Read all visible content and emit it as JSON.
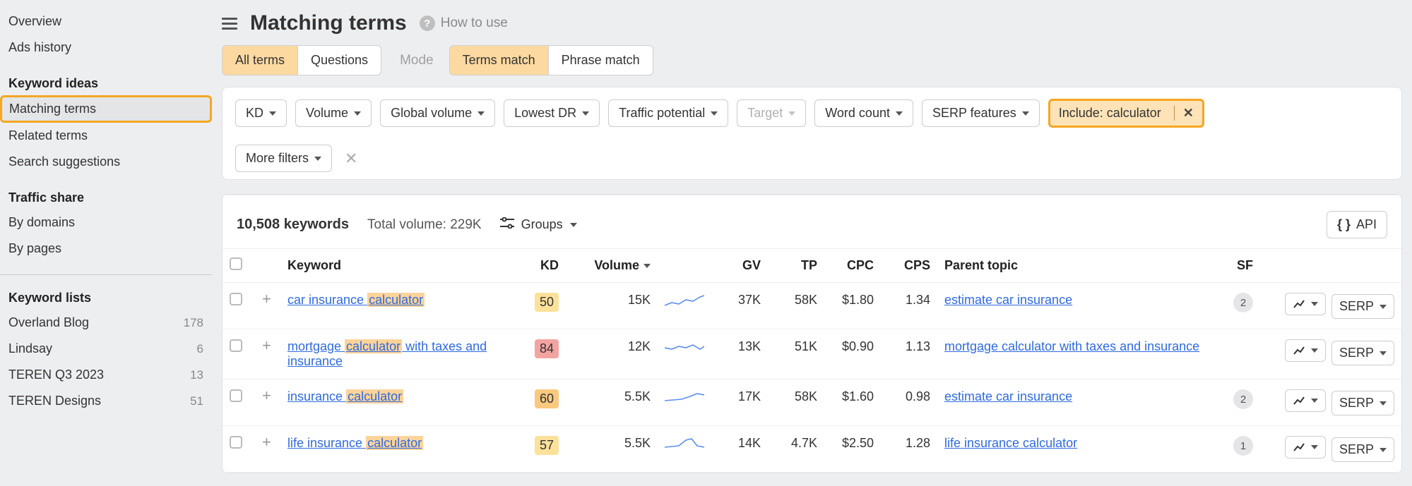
{
  "page": {
    "title": "Matching terms",
    "how_to_use": "How to use"
  },
  "sidebar": {
    "top": [
      {
        "label": "Overview"
      },
      {
        "label": "Ads history"
      }
    ],
    "groups": [
      {
        "heading": "Keyword ideas",
        "items": [
          {
            "label": "Matching terms",
            "active": true
          },
          {
            "label": "Related terms"
          },
          {
            "label": "Search suggestions"
          }
        ]
      },
      {
        "heading": "Traffic share",
        "items": [
          {
            "label": "By domains"
          },
          {
            "label": "By pages"
          }
        ]
      },
      {
        "heading": "Keyword lists",
        "divider_before": true,
        "items": [
          {
            "label": "Overland Blog",
            "count": "178"
          },
          {
            "label": "Lindsay",
            "count": "6"
          },
          {
            "label": "TEREN Q3 2023",
            "count": "13"
          },
          {
            "label": "TEREN Designs",
            "count": "51"
          }
        ]
      }
    ]
  },
  "toggles": {
    "segment1": [
      {
        "label": "All terms",
        "selected": true
      },
      {
        "label": "Questions",
        "selected": false
      }
    ],
    "mode_label": "Mode",
    "segment2": [
      {
        "label": "Terms match",
        "selected": true
      },
      {
        "label": "Phrase match",
        "selected": false
      }
    ]
  },
  "filters": {
    "row1": [
      {
        "label": "KD"
      },
      {
        "label": "Volume"
      },
      {
        "label": "Global volume"
      },
      {
        "label": "Lowest DR"
      },
      {
        "label": "Traffic potential"
      },
      {
        "label": "Target",
        "disabled": true
      },
      {
        "label": "Word count"
      },
      {
        "label": "SERP features"
      },
      {
        "label": "Include: calculator",
        "highlight": true,
        "closable": true
      }
    ],
    "row2": [
      {
        "label": "More filters"
      }
    ]
  },
  "summary": {
    "keywords_count": "10,508 keywords",
    "total_volume": "Total volume: 229K",
    "groups_label": "Groups",
    "api_label": "API"
  },
  "columns": {
    "keyword": "Keyword",
    "kd": "KD",
    "volume": "Volume",
    "gv": "GV",
    "tp": "TP",
    "cpc": "CPC",
    "cps": "CPS",
    "parent": "Parent topic",
    "sf": "SF",
    "serp_btn": "SERP"
  },
  "kd_colors": {
    "50": "#fbe19a",
    "84": "#f2a4a0",
    "60": "#f9c97e",
    "57": "#fbe19a"
  },
  "rows": [
    {
      "keyword_pre": "car insurance ",
      "keyword_hi": "calculator",
      "keyword_post": "",
      "kd": "50",
      "volume": "15K",
      "gv": "37K",
      "tp": "58K",
      "cpc": "$1.80",
      "cps": "1.34",
      "parent": "estimate car insurance",
      "sf": "2",
      "spark": "0,18 10,14 20,16 30,10 40,12 50,6 56,4"
    },
    {
      "keyword_pre": "mortgage ",
      "keyword_hi": "calculator",
      "keyword_post": " with taxes and insurance",
      "kd": "84",
      "volume": "12K",
      "gv": "13K",
      "tp": "51K",
      "cpc": "$0.90",
      "cps": "1.13",
      "parent": "mortgage calculator with taxes and insurance",
      "sf": "",
      "spark": "0,12 10,14 20,10 30,12 40,8 50,14 56,10"
    },
    {
      "keyword_pre": "insurance ",
      "keyword_hi": "calculator",
      "keyword_post": "",
      "kd": "60",
      "volume": "5.5K",
      "gv": "17K",
      "tp": "58K",
      "cpc": "$1.60",
      "cps": "0.98",
      "parent": "estimate car insurance",
      "sf": "2",
      "spark": "0,16 12,15 24,14 36,10 46,6 56,8"
    },
    {
      "keyword_pre": "life insurance ",
      "keyword_hi": "calculator",
      "keyword_post": "",
      "kd": "57",
      "volume": "5.5K",
      "gv": "14K",
      "tp": "4.7K",
      "cpc": "$2.50",
      "cps": "1.28",
      "parent": "life insurance calculator",
      "sf": "1",
      "spark": "0,16 10,15 20,14 30,6 38,4 46,14 56,16"
    }
  ]
}
